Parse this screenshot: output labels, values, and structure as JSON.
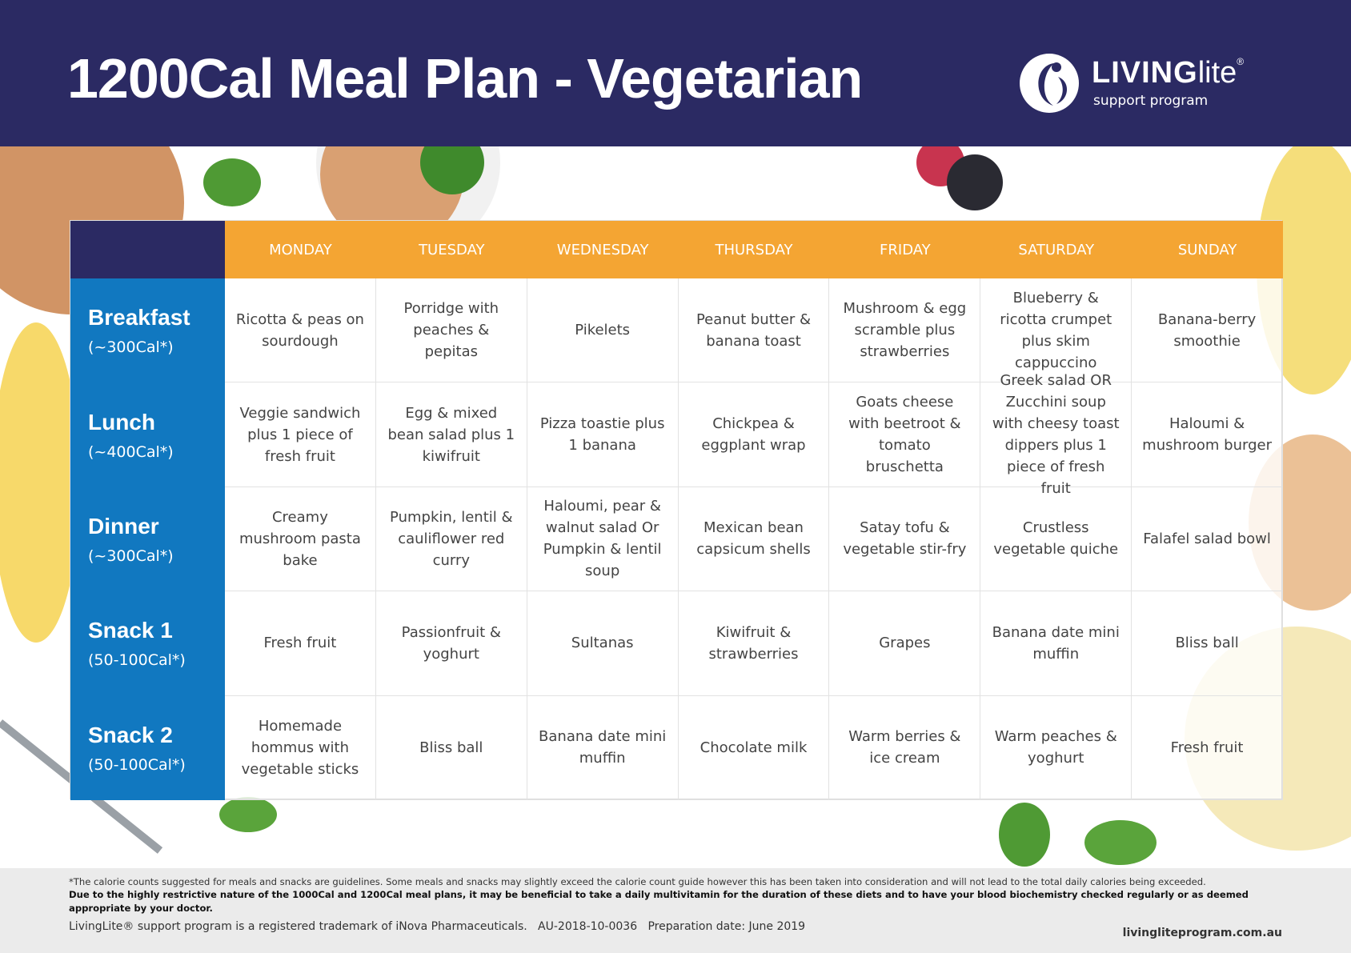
{
  "header": {
    "title": "1200Cal Meal Plan - Vegetarian",
    "logo": {
      "brand_caps": "LIVING",
      "brand_light": "lite",
      "reg": "®",
      "tagline": "support program"
    }
  },
  "table": {
    "days": [
      "MONDAY",
      "TUESDAY",
      "WEDNESDAY",
      "THURSDAY",
      "FRIDAY",
      "SATURDAY",
      "SUNDAY"
    ],
    "meals": [
      {
        "name": "Breakfast",
        "cal": "(~300Cal*)",
        "items": [
          "Ricotta & peas on sourdough",
          "Porridge with peaches & pepitas",
          "Pikelets",
          "Peanut butter & banana toast",
          "Mushroom & egg scramble plus strawberries",
          "Blueberry & ricotta crumpet plus skim cappuccino",
          "Banana-berry smoothie"
        ]
      },
      {
        "name": "Lunch",
        "cal": "(~400Cal*)",
        "items": [
          "Veggie sandwich plus 1 piece of fresh fruit",
          "Egg & mixed bean salad plus 1 kiwifruit",
          "Pizza toastie plus 1 banana",
          "Chickpea & eggplant wrap",
          "Goats cheese with beetroot & tomato bruschetta",
          "Greek salad OR Zucchini soup with cheesy toast dippers plus 1 piece of fresh fruit",
          "Haloumi & mushroom burger"
        ]
      },
      {
        "name": "Dinner",
        "cal": "(~300Cal*)",
        "items": [
          "Creamy mushroom pasta bake",
          "Pumpkin, lentil & cauliflower red curry",
          "Haloumi, pear & walnut salad Or Pumpkin & lentil soup",
          "Mexican bean capsicum shells",
          "Satay tofu & vegetable stir-fry",
          "Crustless vegetable quiche",
          "Falafel salad bowl"
        ]
      },
      {
        "name": "Snack 1",
        "cal": "(50-100Cal*)",
        "items": [
          "Fresh fruit",
          "Passionfruit & yoghurt",
          "Sultanas",
          "Kiwifruit & strawberries",
          "Grapes",
          "Banana date mini muffin",
          "Bliss ball"
        ]
      },
      {
        "name": "Snack 2",
        "cal": "(50-100Cal*)",
        "items": [
          "Homemade hommus with vegetable sticks",
          "Bliss ball",
          "Banana date mini muffin",
          "Chocolate milk",
          "Warm berries & ice cream",
          "Warm peaches & yoghurt",
          "Fresh fruit"
        ]
      }
    ]
  },
  "footer": {
    "note": "*The calorie counts suggested for meals and snacks are guidelines. Some meals and snacks may slightly exceed the calorie count guide however this has been taken into consideration and will not lead to the total daily calories being exceeded.",
    "warning": "Due to the highly restrictive nature of the 1000Cal and 1200Cal meal plans, it may be beneficial to take a daily multivitamin for the duration of these diets and to have your blood biochemistry checked regularly or as deemed appropriate by your doctor.",
    "trademark": "LivingLite® support program is a registered trademark of iNova Pharmaceuticals.   AU-2018-10-0036   Preparation date: June 2019",
    "website": "livingliteprogram.com.au"
  }
}
